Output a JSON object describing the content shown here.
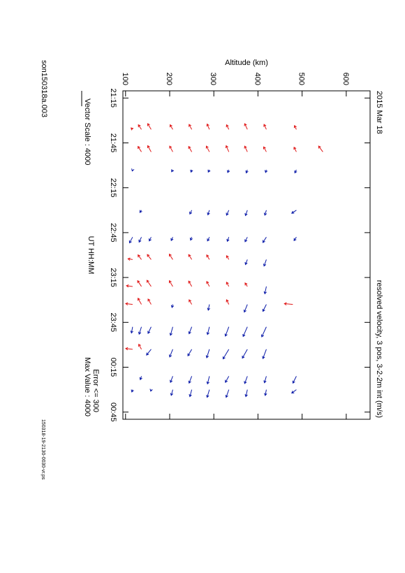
{
  "chart_data": {
    "type": "quiver",
    "title": "2015 Mar 18",
    "subtitle": "resolved velocity, 3 pos, 3-2-2m int (m/s)",
    "y_label": "Altitude (km)",
    "x_label": "UT  HH:MM",
    "vector_scale": "Vector Scale : 4000",
    "file_name": "son150318a.003",
    "error_note": "Error <= 300",
    "max_note": "Max Value : 4000",
    "footer": "150318-19-2130-0030-vr.ps",
    "xlim": [
      21.17,
      24.83
    ],
    "xticks": [
      {
        "value": 21.25,
        "label": "21:15"
      },
      {
        "value": 21.75,
        "label": "21:45"
      },
      {
        "value": 22.25,
        "label": "22:15"
      },
      {
        "value": 22.75,
        "label": "22:45"
      },
      {
        "value": 23.25,
        "label": "23:15"
      },
      {
        "value": 23.75,
        "label": "23:45"
      },
      {
        "value": 24.25,
        "label": "00:15"
      },
      {
        "value": 24.75,
        "label": "00:45"
      }
    ],
    "ylim": [
      94,
      654
    ],
    "yticks": [
      100,
      200,
      300,
      400,
      500,
      600
    ],
    "series": [
      {
        "color": "#e01818",
        "x": [
          21.6,
          21.6,
          21.6,
          21.6,
          21.6,
          21.6,
          21.6,
          21.6,
          21.6,
          21.6,
          21.85,
          21.85,
          21.85,
          21.85,
          21.85,
          21.85,
          21.85,
          21.85,
          21.85,
          21.85,
          23.05,
          23.05,
          23.05,
          23.05,
          23.05,
          23.05,
          23.05,
          23.35,
          23.35,
          23.35,
          23.35,
          23.35,
          23.35,
          23.35,
          23.35,
          23.55,
          23.55,
          23.55,
          23.55,
          23.55,
          23.55,
          24.05,
          24.05
        ],
        "y": [
          116,
          136,
          158,
          207,
          250,
          290,
          334,
          376,
          419,
          487,
          136,
          158,
          207,
          250,
          290,
          334,
          376,
          419,
          487,
          547,
          116,
          136,
          158,
          207,
          250,
          290,
          334,
          116,
          136,
          158,
          207,
          250,
          290,
          334,
          376,
          116,
          136,
          158,
          250,
          334,
          479,
          116,
          136
        ],
        "u": [
          -400,
          -1200,
          -1500,
          -1200,
          -1300,
          -1400,
          -1200,
          -1500,
          -1300,
          -1000,
          -1400,
          -1600,
          -1500,
          -1400,
          -1500,
          -1600,
          -1500,
          -1300,
          -1200,
          -1500,
          -200,
          -1200,
          -1300,
          -1400,
          -1300,
          -1200,
          -1000,
          -200,
          -1500,
          -1600,
          -1500,
          -1400,
          -1300,
          -1100,
          -900,
          -200,
          -1600,
          -1400,
          -1200,
          -1200,
          -200,
          -200,
          -1300
        ],
        "v": [
          -400,
          -800,
          -900,
          -700,
          -700,
          -600,
          -600,
          -700,
          -600,
          -500,
          -900,
          -900,
          -800,
          -800,
          -800,
          -700,
          -700,
          -700,
          -600,
          -1100,
          -1200,
          -900,
          -1000,
          -900,
          -800,
          -700,
          -600,
          -1600,
          -1000,
          -1100,
          -900,
          -800,
          -700,
          -600,
          -600,
          -1800,
          -900,
          -800,
          -700,
          -600,
          -2200,
          -1800,
          -700
        ]
      },
      {
        "color": "#0a1aa8",
        "x": [
          22.05,
          22.05,
          22.05,
          22.05,
          22.05,
          22.05,
          22.05,
          22.05,
          22.5,
          22.5,
          22.5,
          22.5,
          22.5,
          22.5,
          22.5,
          22.8,
          22.8,
          22.8,
          22.8,
          22.8,
          22.8,
          22.8,
          22.8,
          22.8,
          22.8,
          23.05,
          23.05,
          23.35,
          23.55,
          23.55,
          23.55,
          23.55,
          23.8,
          23.8,
          23.8,
          23.8,
          23.8,
          23.8,
          23.8,
          23.8,
          23.8,
          24.05,
          24.05,
          24.05,
          24.05,
          24.05,
          24.05,
          24.05,
          24.35,
          24.35,
          24.35,
          24.35,
          24.35,
          24.35,
          24.35,
          24.35,
          24.5,
          24.5,
          24.5,
          24.5,
          24.5,
          24.5,
          24.5,
          24.5,
          24.5
        ],
        "y": [
          116,
          207,
          250,
          290,
          334,
          376,
          419,
          487,
          136,
          250,
          290,
          334,
          376,
          419,
          487,
          116,
          136,
          158,
          207,
          250,
          290,
          334,
          376,
          419,
          487,
          376,
          419,
          419,
          207,
          290,
          376,
          419,
          116,
          136,
          158,
          207,
          250,
          290,
          334,
          376,
          419,
          158,
          207,
          250,
          290,
          334,
          376,
          419,
          136,
          207,
          250,
          290,
          334,
          376,
          419,
          487,
          116,
          158,
          207,
          250,
          290,
          334,
          376,
          419,
          487
        ],
        "u": [
          300,
          500,
          600,
          600,
          700,
          800,
          700,
          800,
          600,
          1000,
          1200,
          1300,
          1400,
          1300,
          800,
          1500,
          1300,
          1000,
          900,
          800,
          1000,
          1100,
          1200,
          1400,
          900,
          1300,
          1700,
          1900,
          800,
          1500,
          2000,
          1800,
          1600,
          1900,
          1700,
          2200,
          1800,
          2000,
          2400,
          2500,
          2600,
          1500,
          2000,
          1700,
          2200,
          2500,
          2300,
          2400,
          900,
          1600,
          1800,
          2000,
          1600,
          1900,
          1700,
          1800,
          600,
          400,
          1500,
          1800,
          2000,
          2000,
          1800,
          1500,
          900
        ],
        "v": [
          -100,
          -300,
          -200,
          -300,
          -300,
          -300,
          -200,
          -400,
          -400,
          -500,
          -400,
          -600,
          -500,
          -400,
          -1200,
          -800,
          -600,
          -500,
          -400,
          -300,
          -500,
          -400,
          -600,
          -900,
          -600,
          -500,
          -600,
          -400,
          -200,
          -300,
          -800,
          -900,
          -300,
          -600,
          -800,
          -600,
          -700,
          -500,
          -900,
          -1100,
          -1200,
          -1200,
          -800,
          -1000,
          -700,
          -1500,
          -1300,
          -900,
          -300,
          -600,
          -700,
          -500,
          -900,
          -700,
          -500,
          -900,
          -200,
          -100,
          -400,
          -500,
          -600,
          -700,
          -400,
          -300,
          -1200
        ]
      }
    ]
  }
}
